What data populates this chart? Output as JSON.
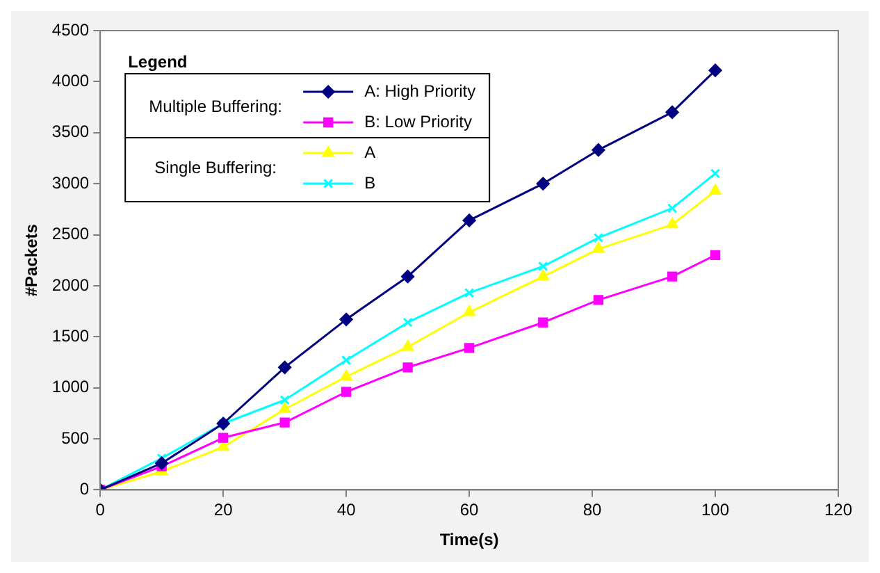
{
  "chart_data": {
    "type": "line",
    "xlabel": "Time(s)",
    "ylabel": "#Packets",
    "legend_title": "Legend",
    "legend": "top left",
    "grid": false,
    "annotations": [
      "Multiple Buffering:",
      "Single Buffering:"
    ],
    "x": [
      0,
      10,
      20,
      30,
      40,
      50,
      60,
      72,
      81,
      93,
      100
    ],
    "xlim": [
      0,
      120
    ],
    "xticks": [
      0,
      20,
      40,
      60,
      80,
      100,
      120
    ],
    "ylim": [
      0,
      4500
    ],
    "yticks": [
      0,
      500,
      1000,
      1500,
      2000,
      2500,
      3000,
      3500,
      4000,
      4500
    ],
    "series": [
      {
        "name": "A: High Priority",
        "color": "#000080",
        "marker": "diamond",
        "values": [
          0,
          260,
          650,
          1200,
          1670,
          2090,
          2640,
          3000,
          3330,
          3700,
          4110
        ]
      },
      {
        "name": "B: Low Priority",
        "color": "#ff00ff",
        "marker": "square",
        "values": [
          0,
          230,
          510,
          660,
          960,
          1200,
          1390,
          1640,
          1860,
          2090,
          2300
        ]
      },
      {
        "name": "A",
        "color": "#ffff00",
        "marker": "triangle",
        "values": [
          0,
          180,
          420,
          790,
          1110,
          1400,
          1740,
          2090,
          2360,
          2600,
          2930
        ]
      },
      {
        "name": "B",
        "color": "#00ffff",
        "marker": "cross",
        "values": [
          0,
          310,
          650,
          880,
          1270,
          1640,
          1930,
          2190,
          2470,
          2760,
          3100
        ]
      }
    ]
  }
}
